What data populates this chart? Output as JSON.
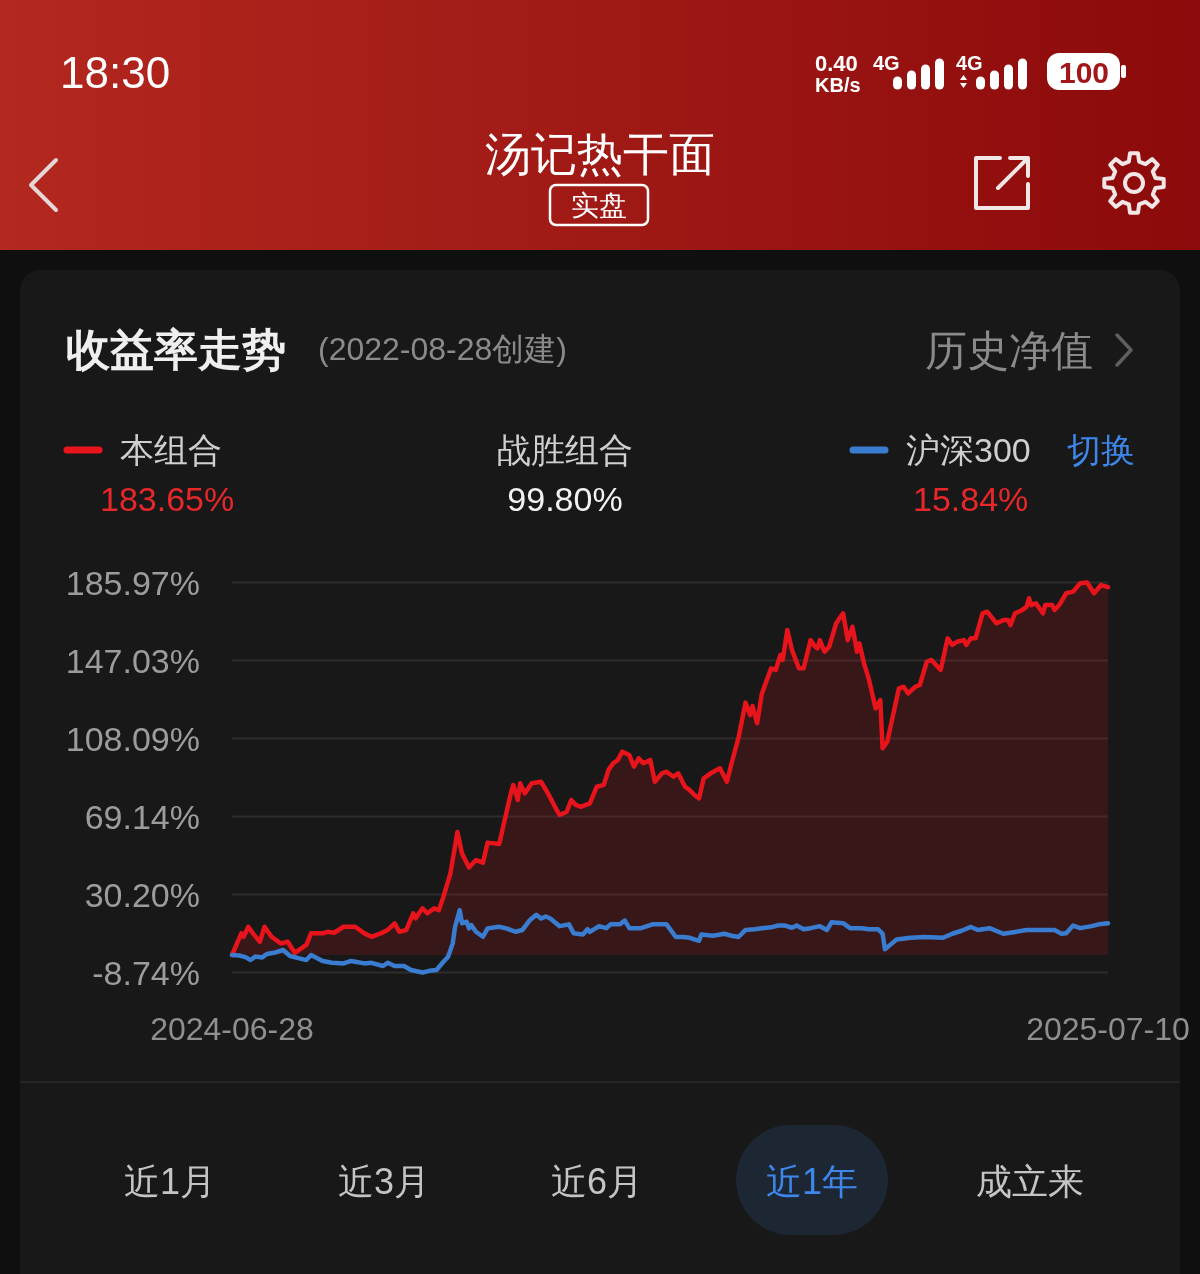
{
  "chart_data": {
    "type": "line",
    "title": "收益率走势",
    "subtitle": "(2022-08-28创建)",
    "annotations": [
      "18:30",
      "0.40",
      "KB/s",
      "4G",
      "4G",
      "100",
      "汤记热干面",
      "实盘",
      "历史净值",
      "183.65%",
      "战胜组合",
      "99.80%",
      "15.84%",
      "切换",
      "近1月",
      "近3月",
      "近6月",
      "近1年",
      "成立来"
    ],
    "xlim": [
      "2024-06-28",
      "2025-07-10"
    ],
    "xticks": [
      "2024-06-28",
      "2025-07-10"
    ],
    "ylim": [
      -8.74,
      185.97
    ],
    "yticks": [
      {
        "value": 185.97,
        "label": "185.97%"
      },
      {
        "value": 147.03,
        "label": "147.03%"
      },
      {
        "value": 108.09,
        "label": "108.09%"
      },
      {
        "value": 69.14,
        "label": "69.14%"
      },
      {
        "value": 30.2,
        "label": "30.20%"
      },
      {
        "value": -8.74,
        "label": "-8.74%"
      }
    ],
    "grid": "y",
    "legend": "top",
    "series": [
      {
        "name": "本组合",
        "color": "#e8141c",
        "type": "area",
        "x": [
          "2024-06-28",
          "2024-07-02",
          "2024-07-03",
          "2024-07-05",
          "2024-07-07",
          "2024-07-10",
          "2024-07-12",
          "2024-07-15",
          "2024-07-19",
          "2024-07-22",
          "2024-07-25",
          "2024-07-30",
          "2024-08-01",
          "2024-08-06",
          "2024-08-08",
          "2024-08-11",
          "2024-08-15",
          "2024-08-20",
          "2024-08-24",
          "2024-08-27",
          "2024-08-31",
          "2024-09-03",
          "2024-09-06",
          "2024-09-08",
          "2024-09-11",
          "2024-09-14",
          "2024-09-15",
          "2024-09-18",
          "2024-09-20",
          "2024-09-23",
          "2024-09-25",
          "2024-09-27",
          "2024-09-30",
          "2024-10-03",
          "2024-10-05",
          "2024-10-08",
          "2024-10-11",
          "2024-10-14",
          "2024-10-16",
          "2024-10-21",
          "2024-10-26",
          "2024-10-27",
          "2024-10-29",
          "2024-10-30",
          "2024-11-01",
          "2024-11-04",
          "2024-11-08",
          "2024-11-11",
          "2024-11-14",
          "2024-11-16",
          "2024-11-19",
          "2024-11-21",
          "2024-11-23",
          "2024-11-25",
          "2024-11-29",
          "2024-12-02",
          "2024-12-05",
          "2024-12-07",
          "2024-12-09",
          "2024-12-11",
          "2024-12-13",
          "2024-12-16",
          "2024-12-18",
          "2024-12-20",
          "2024-12-22",
          "2024-12-25",
          "2024-12-27",
          "2024-12-30",
          "2025-01-01",
          "2025-01-04",
          "2025-01-06",
          "2025-01-09",
          "2025-01-11",
          "2025-01-13",
          "2025-01-15",
          "2025-01-17",
          "2025-01-20",
          "2025-01-24",
          "2025-01-27",
          "2025-01-29",
          "2025-02-01",
          "2025-02-04",
          "2025-02-06",
          "2025-02-07",
          "2025-02-09",
          "2025-02-11",
          "2025-02-15",
          "2025-02-17",
          "2025-02-19",
          "2025-02-20",
          "2025-02-22",
          "2025-02-24",
          "2025-02-27",
          "2025-03-01",
          "2025-03-04",
          "2025-03-06",
          "2025-03-07",
          "2025-03-08",
          "2025-03-10",
          "2025-03-12",
          "2025-03-15",
          "2025-03-18",
          "2025-03-20",
          "2025-03-22",
          "2025-03-24",
          "2025-03-25",
          "2025-03-27",
          "2025-03-29",
          "2025-04-01",
          "2025-04-03",
          "2025-04-04",
          "2025-04-06",
          "2025-04-11",
          "2025-04-13",
          "2025-04-15",
          "2025-04-18",
          "2025-04-20",
          "2025-04-23",
          "2025-04-25",
          "2025-04-29",
          "2025-05-02",
          "2025-05-04",
          "2025-05-06",
          "2025-05-09",
          "2025-05-10",
          "2025-05-12",
          "2025-05-14",
          "2025-05-17",
          "2025-05-19",
          "2025-05-23",
          "2025-05-26",
          "2025-05-28",
          "2025-05-29",
          "2025-05-31",
          "2025-06-03",
          "2025-06-05",
          "2025-06-06",
          "2025-06-07",
          "2025-06-09",
          "2025-06-12",
          "2025-06-13",
          "2025-06-16",
          "2025-06-17",
          "2025-06-19",
          "2025-06-22",
          "2025-06-25",
          "2025-06-28",
          "2025-07-01",
          "2025-07-04",
          "2025-07-07",
          "2025-07-10"
        ],
        "values": [
          0,
          10.8,
          9.1,
          14.1,
          10.8,
          6.6,
          14.1,
          9.1,
          5.8,
          6.6,
          1.1,
          5.0,
          10.8,
          10.8,
          11.6,
          11.1,
          14.1,
          14.1,
          10.8,
          9.1,
          10.8,
          12.5,
          15.8,
          11.6,
          12.5,
          20.8,
          18.3,
          23.3,
          20.8,
          23.3,
          22.4,
          29.1,
          40.8,
          61.4,
          50.7,
          43.7,
          47.4,
          46.1,
          56.1,
          55.4,
          80.7,
          84.9,
          77.4,
          85.7,
          80.7,
          85.7,
          86.5,
          80.7,
          74.0,
          69.9,
          71.5,
          77.4,
          74.9,
          74.0,
          75.7,
          84.0,
          84.9,
          92.3,
          95.7,
          97.3,
          101.5,
          99.8,
          94.0,
          98.2,
          95.7,
          97.3,
          86.5,
          90.7,
          91.5,
          89.0,
          90.7,
          84.0,
          82.3,
          79.9,
          78.2,
          88.2,
          90.7,
          93.2,
          86.5,
          95.7,
          108.6,
          126.0,
          119.8,
          124.3,
          115.7,
          130.3,
          143.1,
          142.3,
          149.8,
          147.3,
          162.2,
          152.3,
          143.1,
          143.1,
          157.2,
          153.9,
          153.1,
          157.2,
          151.4,
          153.9,
          165.6,
          170.6,
          157.2,
          163.9,
          151.4,
          155.6,
          145.6,
          138.1,
          123.1,
          127.3,
          103.2,
          106.5,
          133.1,
          133.9,
          130.6,
          133.9,
          134.8,
          146.4,
          147.3,
          142.3,
          158.1,
          154.8,
          156.4,
          157.2,
          154.8,
          158.1,
          158.1,
          170.6,
          171.4,
          165.6,
          167.2,
          167.2,
          164.7,
          170.6,
          172.2,
          173.9,
          178.1,
          174.7,
          175.6,
          170.6,
          174.7,
          174.7,
          172.2,
          174.7,
          180.6,
          181.4,
          185.6,
          185.97,
          180.6,
          184.7,
          183.65
        ]
      },
      {
        "name": "沪深300",
        "color": "#3a7dd0",
        "type": "line",
        "x": [
          "2024-06-28",
          "2024-07-01",
          "2024-07-04",
          "2024-07-06",
          "2024-07-08",
          "2024-07-11",
          "2024-07-13",
          "2024-07-16",
          "2024-07-20",
          "2024-07-23",
          "2024-07-27",
          "2024-07-30",
          "2024-08-01",
          "2024-08-06",
          "2024-08-10",
          "2024-08-15",
          "2024-08-18",
          "2024-08-20",
          "2024-08-24",
          "2024-08-27",
          "2024-09-01",
          "2024-09-03",
          "2024-09-06",
          "2024-09-10",
          "2024-09-13",
          "2024-09-18",
          "2024-09-21",
          "2024-09-24",
          "2024-09-27",
          "2024-09-29",
          "2024-10-01",
          "2024-10-02",
          "2024-10-04",
          "2024-10-05",
          "2024-10-07",
          "2024-10-08",
          "2024-10-09",
          "2024-10-11",
          "2024-10-14",
          "2024-10-16",
          "2024-10-21",
          "2024-10-24",
          "2024-10-28",
          "2024-10-31",
          "2024-11-03",
          "2024-11-06",
          "2024-11-08",
          "2024-11-10",
          "2024-11-12",
          "2024-11-16",
          "2024-11-20",
          "2024-11-22",
          "2024-11-26",
          "2024-11-28",
          "2024-11-29",
          "2024-12-03",
          "2024-12-06",
          "2024-12-08",
          "2024-12-12",
          "2024-12-14",
          "2024-12-16",
          "2024-12-21",
          "2024-12-26",
          "2025-01-01",
          "2025-01-05",
          "2025-01-08",
          "2025-01-11",
          "2025-01-15",
          "2025-01-16",
          "2025-01-21",
          "2025-01-26",
          "2025-01-29",
          "2025-02-01",
          "2025-02-04",
          "2025-02-08",
          "2025-02-11",
          "2025-02-15",
          "2025-02-18",
          "2025-02-21",
          "2025-02-24",
          "2025-02-26",
          "2025-03-01",
          "2025-03-04",
          "2025-03-08",
          "2025-03-11",
          "2025-03-13",
          "2025-03-18",
          "2025-03-21",
          "2025-03-26",
          "2025-03-29",
          "2025-04-02",
          "2025-04-04",
          "2025-04-05",
          "2025-04-07",
          "2025-04-10",
          "2025-04-16",
          "2025-04-22",
          "2025-04-30",
          "2025-05-04",
          "2025-05-08",
          "2025-05-12",
          "2025-05-15",
          "2025-05-20",
          "2025-05-26",
          "2025-05-31",
          "2025-06-05",
          "2025-06-10",
          "2025-06-17",
          "2025-06-20",
          "2025-06-22",
          "2025-06-25",
          "2025-06-28",
          "2025-07-03",
          "2025-07-06",
          "2025-07-10"
        ],
        "values": [
          0,
          -0.2,
          -1.2,
          -2.5,
          -0.8,
          -1.2,
          0.5,
          1.1,
          2.5,
          -0.5,
          -1.7,
          -2.5,
          0.0,
          -3.0,
          -3.9,
          -4.2,
          -3.0,
          -3.4,
          -4.2,
          -3.9,
          -5.5,
          -3.9,
          -5.5,
          -5.5,
          -7.5,
          -8.74,
          -7.9,
          -7.5,
          -3.4,
          -0.9,
          5.8,
          14.1,
          22.4,
          15.8,
          16.6,
          13.3,
          14.9,
          11.6,
          9.1,
          13.3,
          14.1,
          13.3,
          11.6,
          12.5,
          17.2,
          20.1,
          18.2,
          19.2,
          18.2,
          14.4,
          15.3,
          10.9,
          10.2,
          12.9,
          11.5,
          14.4,
          13.4,
          15.3,
          15.3,
          17.2,
          13.4,
          13.4,
          15.3,
          15.3,
          9.0,
          9.0,
          8.6,
          7.1,
          10.2,
          9.6,
          10.6,
          9.6,
          9.0,
          12.5,
          12.9,
          13.4,
          13.8,
          14.7,
          14.7,
          13.6,
          14.7,
          12.9,
          13.4,
          14.4,
          12.5,
          16.3,
          15.9,
          13.4,
          13.4,
          12.9,
          12.9,
          10.6,
          2.9,
          4.8,
          7.7,
          8.6,
          9.0,
          8.6,
          10.6,
          12.1,
          14.0,
          12.5,
          13.4,
          10.6,
          11.5,
          12.5,
          12.5,
          12.5,
          10.6,
          10.9,
          14.7,
          13.4,
          14.4,
          15.3,
          15.84
        ]
      }
    ]
  }
}
